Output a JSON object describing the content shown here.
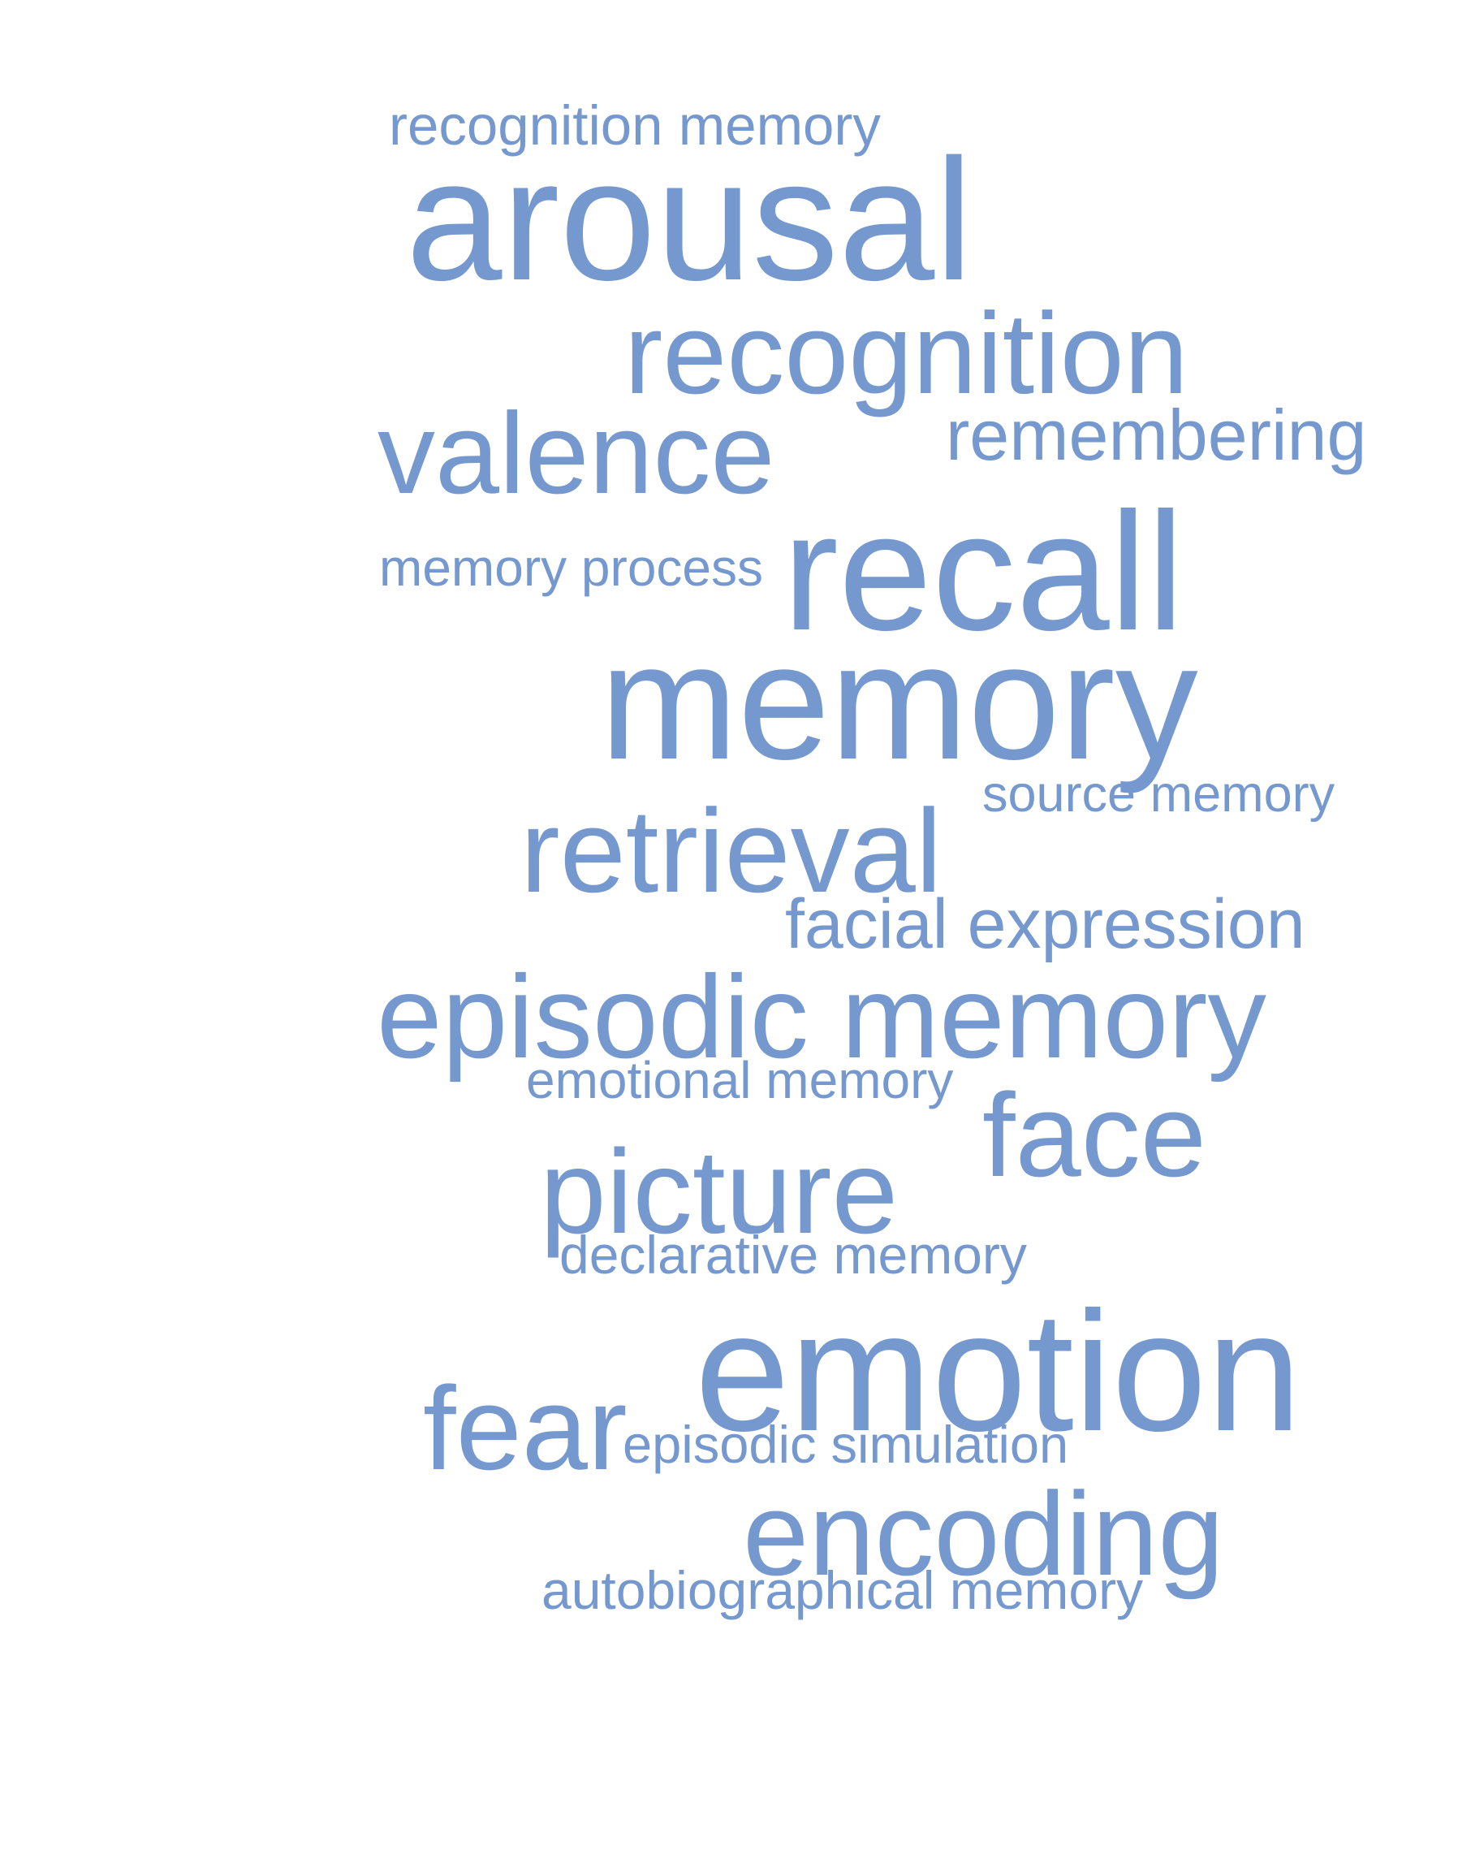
{
  "color": "#7598cf",
  "words": [
    {
      "id": "recognition-memory",
      "text": "recognition memory"
    },
    {
      "id": "arousal",
      "text": "arousal"
    },
    {
      "id": "recognition",
      "text": "recognition"
    },
    {
      "id": "valence",
      "text": "valence"
    },
    {
      "id": "remembering",
      "text": "remembering"
    },
    {
      "id": "memory-process",
      "text": "memory process"
    },
    {
      "id": "recall",
      "text": "recall"
    },
    {
      "id": "memory",
      "text": "memory"
    },
    {
      "id": "source-memory",
      "text": "source memory"
    },
    {
      "id": "retrieval",
      "text": "retrieval"
    },
    {
      "id": "facial-expression",
      "text": "facial expression"
    },
    {
      "id": "episodic-memory",
      "text": "episodic memory"
    },
    {
      "id": "emotional-memory",
      "text": "emotional memory"
    },
    {
      "id": "face",
      "text": "face"
    },
    {
      "id": "picture",
      "text": "picture"
    },
    {
      "id": "declarative-memory",
      "text": "declarative memory"
    },
    {
      "id": "emotion",
      "text": "emotion"
    },
    {
      "id": "fear",
      "text": "fear"
    },
    {
      "id": "episodic-simulation",
      "text": "episodic simulation"
    },
    {
      "id": "encoding",
      "text": "encoding"
    },
    {
      "id": "autobiographical-memory",
      "text": "autobiographical memory"
    }
  ]
}
